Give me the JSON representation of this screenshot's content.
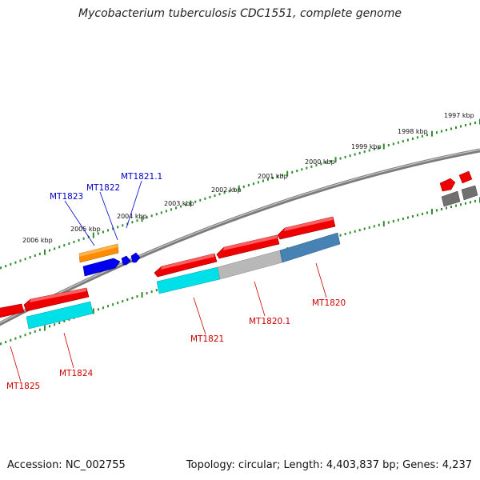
{
  "title": "Mycobacterium tuberculosis CDC1551, complete genome",
  "footer": {
    "accession": "Accession: NC_002755",
    "summary": "Topology: circular; Length: 4,403,837 bp; Genes: 4,237"
  },
  "colors": {
    "backbone": "#888888",
    "tick": "#2e8b2e",
    "forward_label": "#0000cc",
    "reverse_label": "#cc0000"
  },
  "kbp_labels": [
    "1997 kbp",
    "1998 kbp",
    "1999 kbp",
    "2000 kbp",
    "2001 kbp",
    "2002 kbp",
    "2003 kbp",
    "2004 kbp",
    "2005 kbp",
    "2006 kbp"
  ],
  "gene_labels": {
    "MT1821_1": "MT1821.1",
    "MT1822": "MT1822",
    "MT1823": "MT1823",
    "MT1821": "MT1821",
    "MT1820_1": "MT1820.1",
    "MT1820": "MT1820",
    "MT1824": "MT1824",
    "MT1825": "MT1825"
  }
}
